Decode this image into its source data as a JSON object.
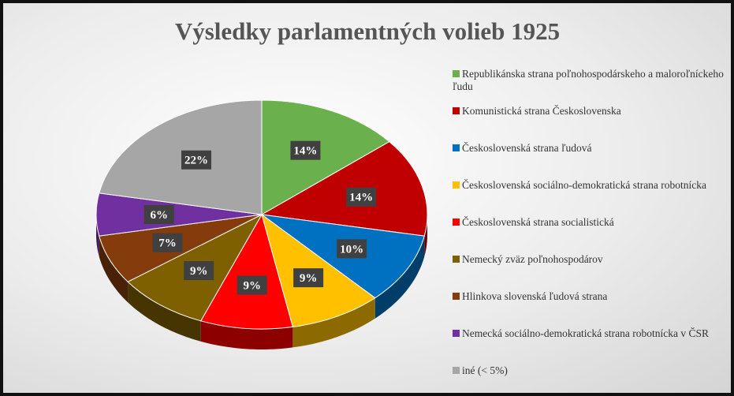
{
  "chart_data": {
    "type": "pie",
    "title": "Výsledky parlamentných volieb 1925",
    "categories": [
      "Republikánska strana poľnohospodárskeho a maloroľníckeho ľudu",
      "Komunistická strana Československa",
      "Československá strana ľudová",
      "Československá sociálno-demokratická strana robotnícka",
      "Československá strana socialistická",
      "Nemecký zväz poľnohospodárov",
      "Hlinkova slovenská ľudová strana",
      "Nemecká sociálno-demokratická strana robotnícka v ČSR",
      "iné (< 5%)"
    ],
    "values": [
      14,
      14,
      10,
      9,
      9,
      9,
      7,
      6,
      22
    ],
    "value_labels": [
      "14%",
      "14%",
      "10%",
      "9%",
      "9%",
      "9%",
      "7%",
      "6%",
      "22%"
    ],
    "colors": [
      "#6ab04c",
      "#c00000",
      "#0070c0",
      "#ffc000",
      "#ff0000",
      "#7f6000",
      "#843c0c",
      "#7030a0",
      "#a6a6a6"
    ],
    "legend": "right"
  }
}
